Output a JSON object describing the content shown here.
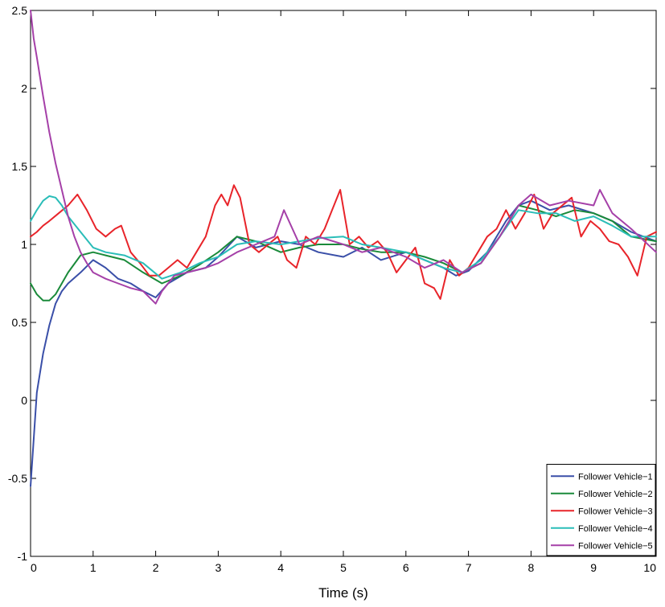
{
  "chart_data": {
    "type": "line",
    "title": "",
    "xlabel": "Time (s)",
    "ylabel": "",
    "xlim": [
      0,
      10
    ],
    "ylim": [
      -1,
      2.5
    ],
    "xticks": [
      "0",
      "1",
      "2",
      "3",
      "4",
      "5",
      "6",
      "7",
      "8",
      "9",
      "10"
    ],
    "yticks": [
      "-1",
      "-0.5",
      "0",
      "0.5",
      "1",
      "1.5",
      "2",
      "2.5"
    ],
    "legend_position": "bottom-right",
    "series": [
      {
        "name": "Follower Vehicle−1",
        "color": "#3a4fa8",
        "x": [
          0,
          0.1,
          0.2,
          0.3,
          0.4,
          0.5,
          0.6,
          0.8,
          1.0,
          1.2,
          1.4,
          1.6,
          1.8,
          2.0,
          2.2,
          2.5,
          2.8,
          3.0,
          3.3,
          3.6,
          4.0,
          4.3,
          4.6,
          5.0,
          5.3,
          5.6,
          6.0,
          6.3,
          6.6,
          6.8,
          7.0,
          7.3,
          7.6,
          7.8,
          8.0,
          8.3,
          8.6,
          9.0,
          9.3,
          9.6,
          10.0
        ],
        "y": [
          -0.55,
          0.05,
          0.3,
          0.48,
          0.62,
          0.7,
          0.75,
          0.82,
          0.9,
          0.85,
          0.78,
          0.75,
          0.7,
          0.66,
          0.75,
          0.82,
          0.85,
          0.92,
          1.05,
          0.98,
          1.02,
          1.0,
          0.95,
          0.92,
          0.98,
          0.9,
          0.95,
          0.9,
          0.85,
          0.8,
          0.83,
          0.95,
          1.15,
          1.25,
          1.28,
          1.22,
          1.25,
          1.2,
          1.15,
          1.08,
          1.02
        ]
      },
      {
        "name": "Follower Vehicle−2",
        "color": "#1a8a3a",
        "x": [
          0,
          0.1,
          0.2,
          0.3,
          0.4,
          0.6,
          0.8,
          1.0,
          1.2,
          1.5,
          1.8,
          2.1,
          2.4,
          2.7,
          3.0,
          3.3,
          3.6,
          4.0,
          4.3,
          4.6,
          5.0,
          5.3,
          5.6,
          6.0,
          6.3,
          6.6,
          6.9,
          7.2,
          7.5,
          7.8,
          8.1,
          8.4,
          8.7,
          9.0,
          9.3,
          9.6,
          10.0
        ],
        "y": [
          0.75,
          0.68,
          0.64,
          0.64,
          0.68,
          0.82,
          0.93,
          0.95,
          0.93,
          0.9,
          0.82,
          0.75,
          0.8,
          0.87,
          0.95,
          1.05,
          1.02,
          0.95,
          0.98,
          1.0,
          1.0,
          0.97,
          0.95,
          0.95,
          0.92,
          0.88,
          0.82,
          0.88,
          1.05,
          1.25,
          1.22,
          1.18,
          1.22,
          1.2,
          1.15,
          1.05,
          1.02
        ]
      },
      {
        "name": "Follower Vehicle−3",
        "color": "#e8242a",
        "x": [
          0,
          0.1,
          0.2,
          0.3,
          0.45,
          0.6,
          0.75,
          0.9,
          1.05,
          1.2,
          1.35,
          1.45,
          1.6,
          1.75,
          1.9,
          2.05,
          2.2,
          2.35,
          2.5,
          2.65,
          2.8,
          2.95,
          3.05,
          3.15,
          3.25,
          3.35,
          3.5,
          3.65,
          3.8,
          3.95,
          4.1,
          4.25,
          4.4,
          4.55,
          4.7,
          4.82,
          4.95,
          5.1,
          5.25,
          5.4,
          5.55,
          5.7,
          5.85,
          6.0,
          6.15,
          6.3,
          6.45,
          6.55,
          6.7,
          6.85,
          7.0,
          7.15,
          7.3,
          7.45,
          7.6,
          7.75,
          7.9,
          8.05,
          8.2,
          8.35,
          8.5,
          8.65,
          8.8,
          8.95,
          9.1,
          9.25,
          9.4,
          9.55,
          9.7,
          9.85,
          10.0
        ],
        "y": [
          1.05,
          1.08,
          1.12,
          1.15,
          1.2,
          1.25,
          1.32,
          1.22,
          1.1,
          1.05,
          1.1,
          1.12,
          0.95,
          0.88,
          0.8,
          0.8,
          0.85,
          0.9,
          0.85,
          0.95,
          1.05,
          1.25,
          1.32,
          1.25,
          1.38,
          1.3,
          1.0,
          0.95,
          1.0,
          1.05,
          0.9,
          0.85,
          1.05,
          1.0,
          1.1,
          1.22,
          1.35,
          1.0,
          1.05,
          0.98,
          1.02,
          0.95,
          0.82,
          0.9,
          0.98,
          0.75,
          0.72,
          0.65,
          0.9,
          0.8,
          0.85,
          0.95,
          1.05,
          1.1,
          1.22,
          1.1,
          1.2,
          1.32,
          1.1,
          1.2,
          1.25,
          1.3,
          1.05,
          1.15,
          1.1,
          1.02,
          1.0,
          0.92,
          0.8,
          1.05,
          1.08
        ]
      },
      {
        "name": "Follower Vehicle−4",
        "color": "#2abdb8",
        "x": [
          0,
          0.1,
          0.2,
          0.3,
          0.4,
          0.5,
          0.6,
          0.8,
          1.0,
          1.2,
          1.5,
          1.8,
          2.1,
          2.4,
          2.7,
          3.0,
          3.3,
          3.6,
          4.0,
          4.3,
          4.6,
          5.0,
          5.3,
          5.6,
          6.0,
          6.3,
          6.6,
          6.9,
          7.2,
          7.5,
          7.8,
          8.1,
          8.4,
          8.7,
          9.0,
          9.3,
          9.6,
          10.0
        ],
        "y": [
          1.15,
          1.22,
          1.28,
          1.31,
          1.3,
          1.25,
          1.18,
          1.08,
          0.98,
          0.95,
          0.93,
          0.88,
          0.78,
          0.82,
          0.88,
          0.92,
          1.0,
          1.02,
          1.0,
          1.02,
          1.04,
          1.05,
          1.0,
          0.98,
          0.95,
          0.9,
          0.85,
          0.82,
          0.9,
          1.05,
          1.22,
          1.2,
          1.2,
          1.15,
          1.18,
          1.12,
          1.05,
          1.05
        ]
      },
      {
        "name": "Follower Vehicle−5",
        "color": "#a540a8",
        "x": [
          0,
          0.05,
          0.1,
          0.2,
          0.3,
          0.4,
          0.5,
          0.6,
          0.7,
          0.8,
          0.9,
          1.0,
          1.2,
          1.4,
          1.6,
          1.8,
          2.0,
          2.1,
          2.3,
          2.5,
          2.8,
          3.0,
          3.3,
          3.6,
          3.9,
          4.05,
          4.3,
          4.6,
          5.0,
          5.3,
          5.6,
          6.0,
          6.3,
          6.6,
          6.9,
          7.2,
          7.5,
          7.8,
          8.0,
          8.3,
          8.6,
          9.0,
          9.1,
          9.3,
          9.6,
          10.0
        ],
        "y": [
          2.5,
          2.32,
          2.2,
          1.95,
          1.72,
          1.52,
          1.35,
          1.18,
          1.05,
          0.95,
          0.88,
          0.82,
          0.78,
          0.75,
          0.72,
          0.7,
          0.62,
          0.7,
          0.8,
          0.82,
          0.85,
          0.88,
          0.95,
          1.0,
          1.05,
          1.22,
          1.0,
          1.05,
          1.0,
          0.95,
          0.98,
          0.92,
          0.85,
          0.9,
          0.82,
          0.88,
          1.05,
          1.25,
          1.32,
          1.25,
          1.28,
          1.25,
          1.35,
          1.2,
          1.1,
          0.95
        ]
      }
    ]
  }
}
